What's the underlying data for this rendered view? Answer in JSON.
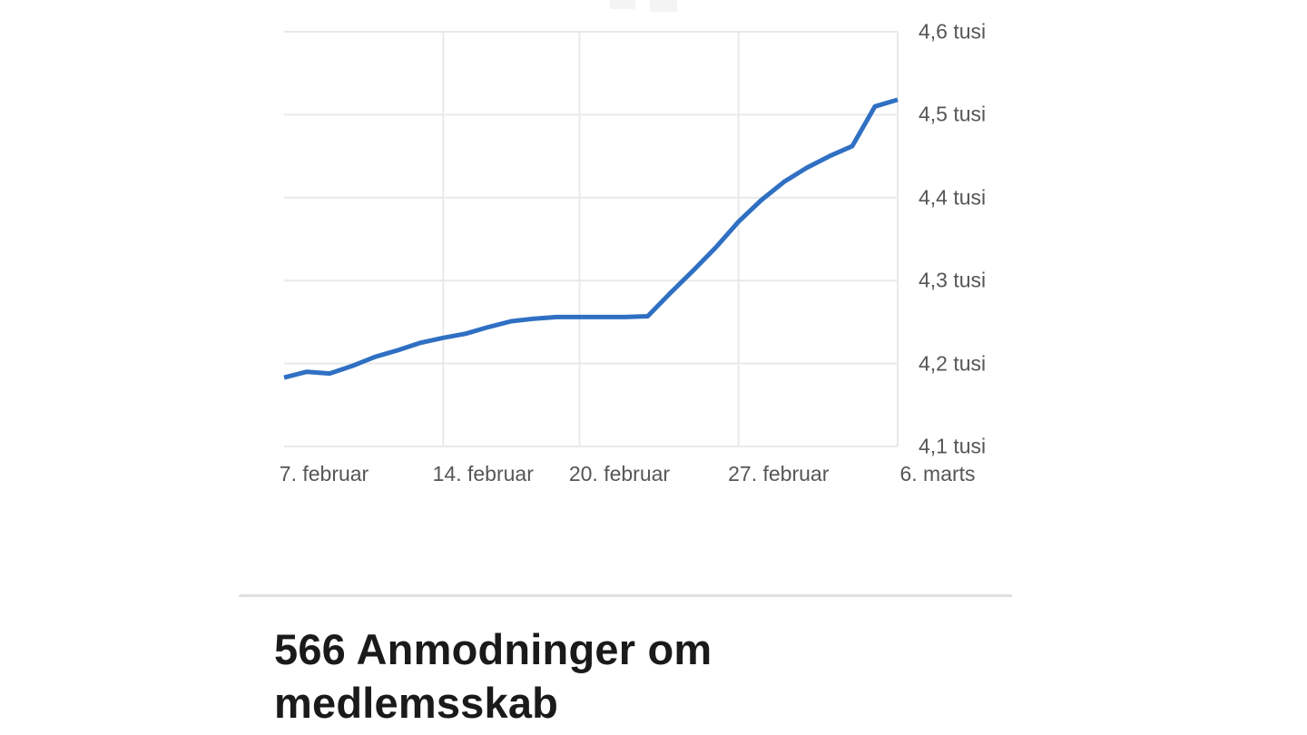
{
  "colors": {
    "line": "#2f70c3",
    "grid": "#e9e9e9",
    "tick_text": "#565656",
    "heading_text": "#1a1a1a",
    "divider": "#e0e0e0"
  },
  "chart_data": {
    "type": "line",
    "title": "",
    "xlabel": "",
    "ylabel": "tusi",
    "x_days": [
      0,
      1,
      2,
      3,
      4,
      5,
      6,
      7,
      8,
      9,
      10,
      11,
      12,
      13,
      14,
      15,
      16,
      17,
      18,
      19,
      20,
      21,
      22,
      23,
      24,
      25,
      26,
      27
    ],
    "values": [
      4.183,
      4.19,
      4.188,
      4.197,
      4.208,
      4.216,
      4.225,
      4.231,
      4.236,
      4.244,
      4.251,
      4.254,
      4.256,
      4.256,
      4.256,
      4.256,
      4.257,
      4.285,
      4.312,
      4.34,
      4.371,
      4.397,
      4.419,
      4.436,
      4.45,
      4.462,
      4.51,
      4.518
    ],
    "xlim_days": [
      0,
      27
    ],
    "ylim": [
      4.1,
      4.6
    ],
    "x_tick_days": [
      0,
      7,
      13,
      20,
      27
    ],
    "x_tick_labels": [
      "7. februar",
      "14. februar",
      "20. februar",
      "27. februar",
      "6. marts"
    ],
    "vertical_gridline_days": [
      7,
      13,
      20,
      27
    ],
    "y_ticks": [
      4.1,
      4.2,
      4.3,
      4.4,
      4.5,
      4.6
    ],
    "y_tick_labels": [
      "4,1 tusi",
      "4,2 tusi",
      "4,3 tusi",
      "4,4 tusi",
      "4,5 tusi",
      "4,6 tusi"
    ],
    "grid": true,
    "legend": "none"
  },
  "section": {
    "heading": "566 Anmodninger om medlemsskab"
  }
}
